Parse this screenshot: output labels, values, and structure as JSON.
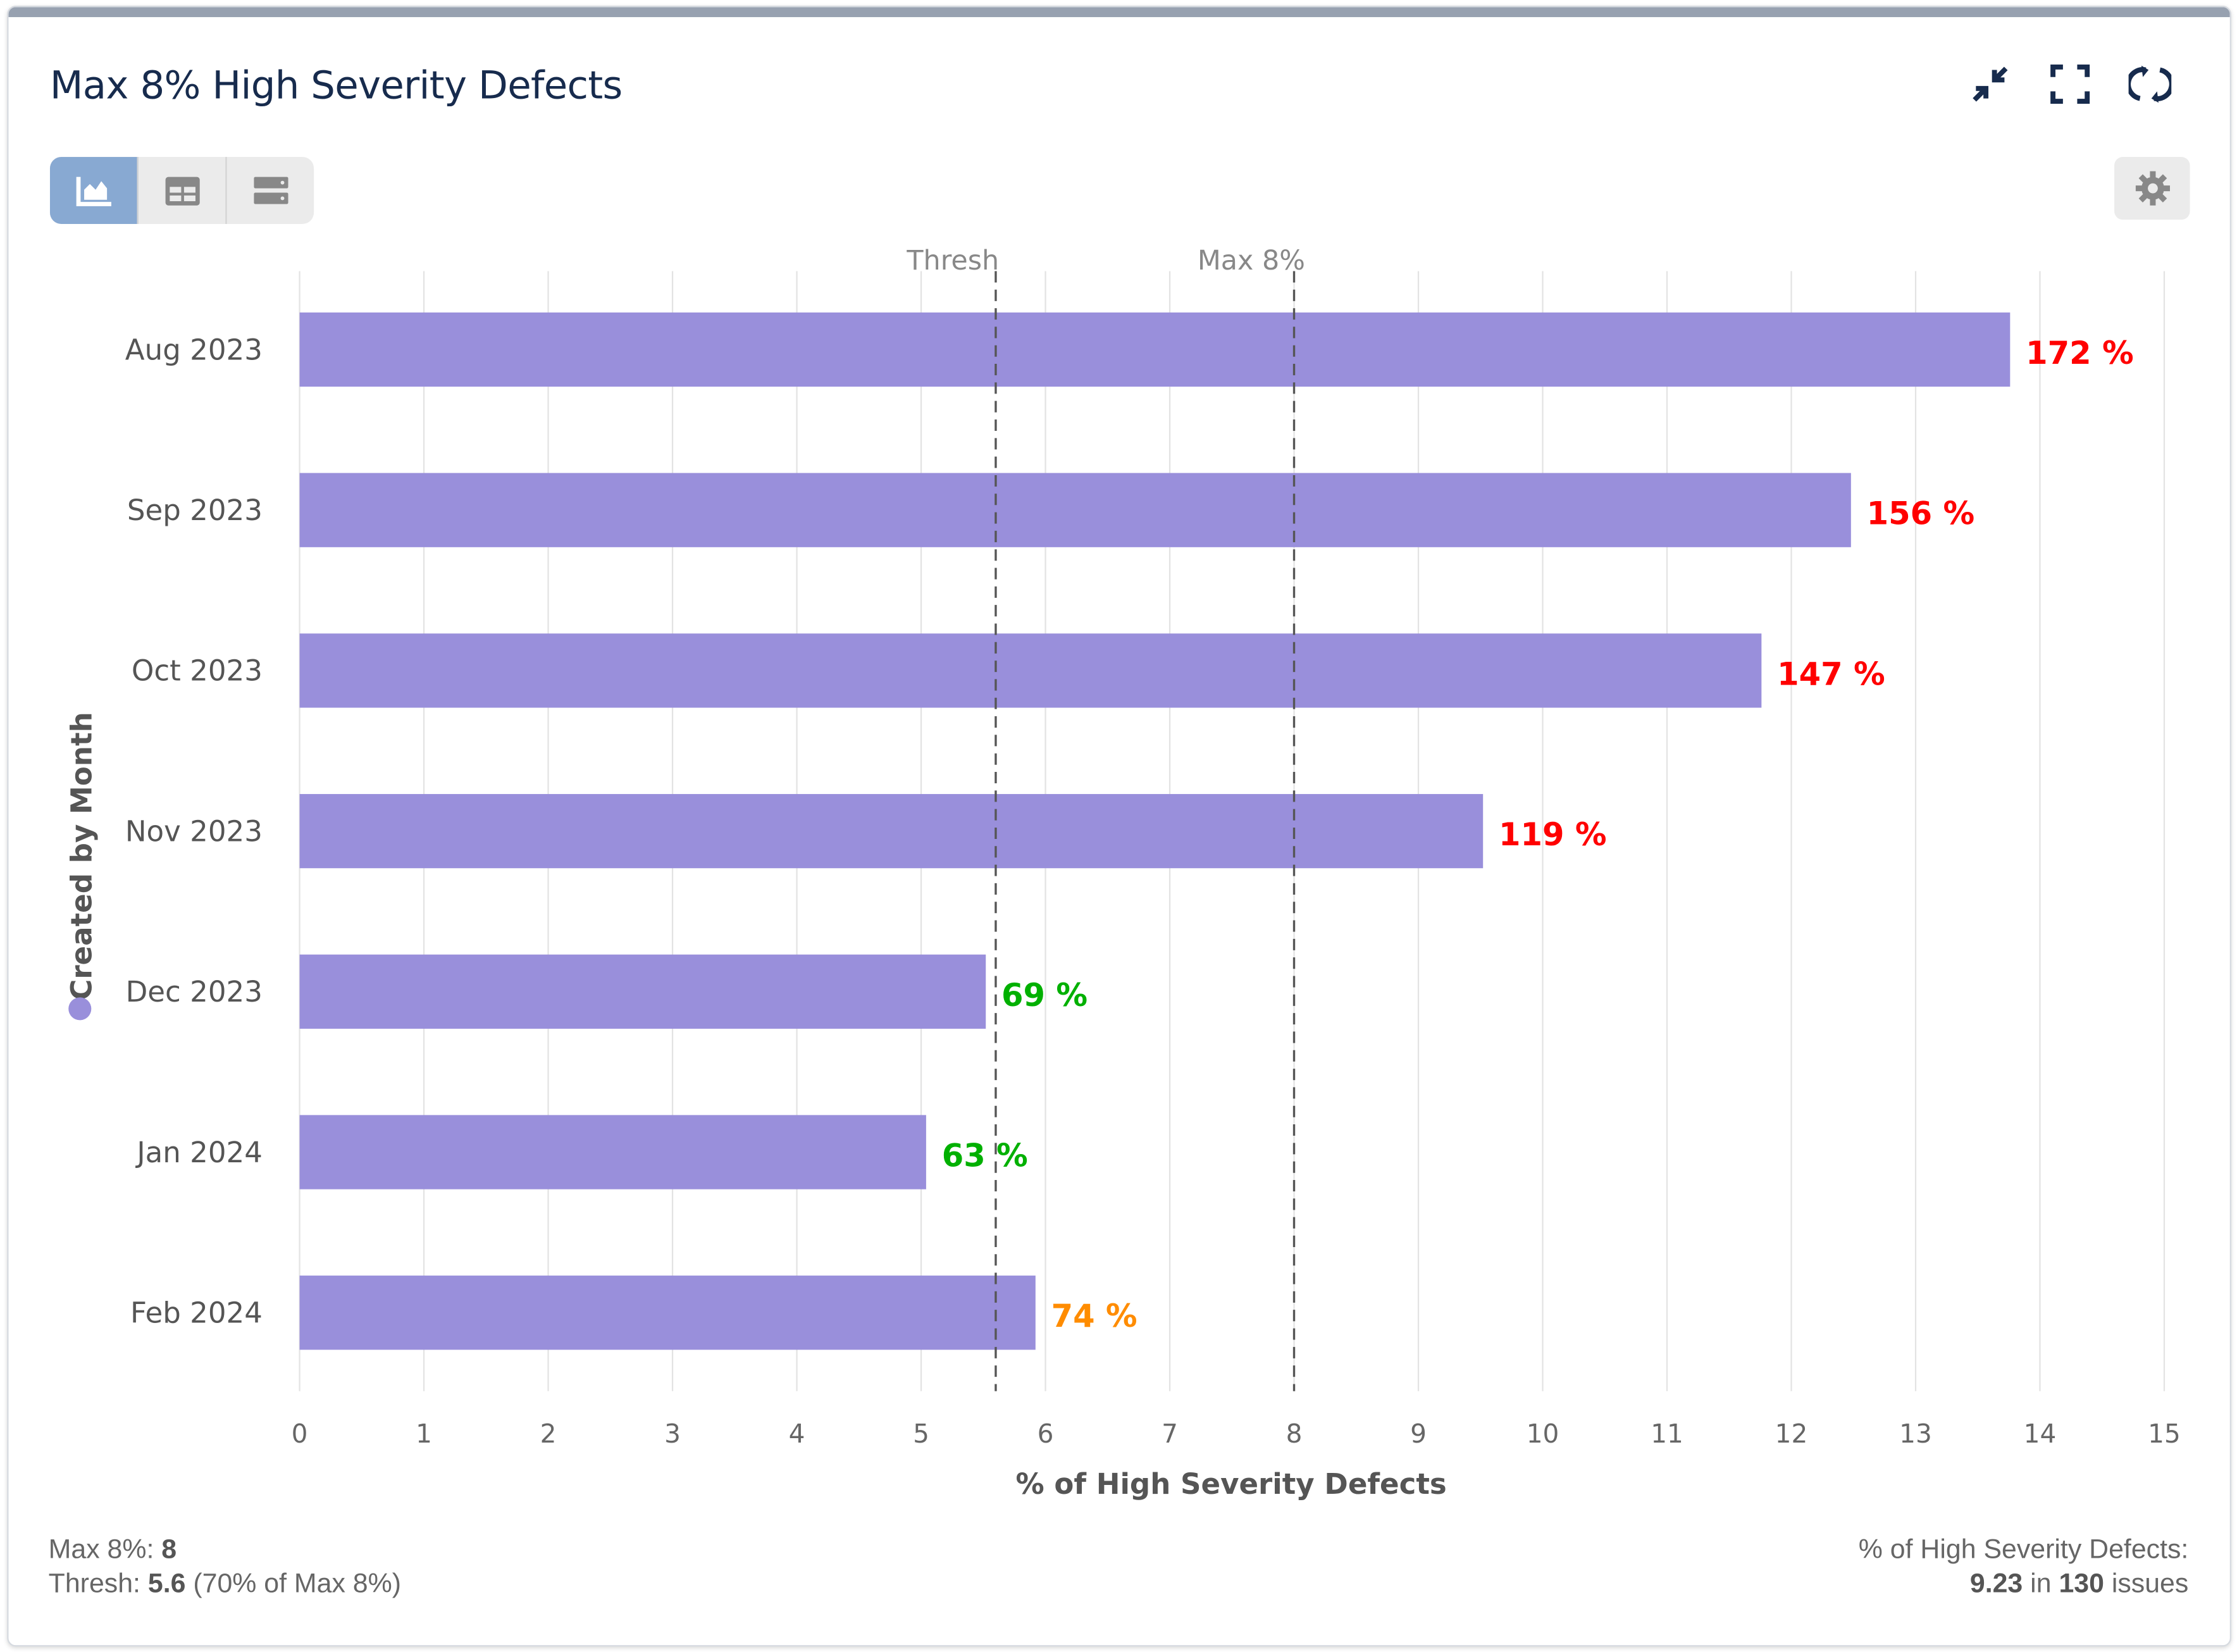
{
  "header": {
    "title": "Max 8% High Severity Defects",
    "icons": [
      "collapse-icon",
      "fullscreen-icon",
      "refresh-icon"
    ]
  },
  "view_switcher": {
    "items": [
      "chart-view",
      "table-view",
      "list-view"
    ],
    "active": "chart-view"
  },
  "settings_icon": "gear-icon",
  "chart_data": {
    "type": "bar",
    "orientation": "horizontal",
    "categories": [
      "Aug 2023",
      "Sep 2023",
      "Oct 2023",
      "Nov 2023",
      "Dec 2023",
      "Jan 2024",
      "Feb 2024"
    ],
    "values": [
      13.76,
      12.48,
      11.76,
      9.52,
      5.52,
      5.04,
      5.92
    ],
    "data_labels": [
      "172 %",
      "156 %",
      "147 %",
      "119 %",
      "69 %",
      "63 %",
      "74 %"
    ],
    "label_colors": [
      "#ff0000",
      "#ff0000",
      "#ff0000",
      "#ff0000",
      "#00b000",
      "#00b000",
      "#ff8c00"
    ],
    "bar_color": "#998fdb",
    "xlabel": "% of High Severity Defects",
    "ylabel": "Created by Month",
    "xlim": [
      0,
      15
    ],
    "xticks": [
      "0",
      "1",
      "2",
      "3",
      "4",
      "5",
      "6",
      "7",
      "8",
      "9",
      "10",
      "11",
      "12",
      "13",
      "14",
      "15"
    ],
    "grid": true,
    "reference_lines": [
      {
        "name": "Thresh",
        "value": 5.6
      },
      {
        "name": "Max 8%",
        "value": 8
      }
    ]
  },
  "footer": {
    "max_label": "Max 8%:",
    "max_value": "8",
    "thresh_label": "Thresh:",
    "thresh_value": "5.6",
    "thresh_note": "(70% of Max 8%)",
    "summary_label": "% of High Severity Defects:",
    "summary_value": "9.23",
    "summary_in": "in",
    "summary_count": "130",
    "summary_unit": "issues"
  }
}
